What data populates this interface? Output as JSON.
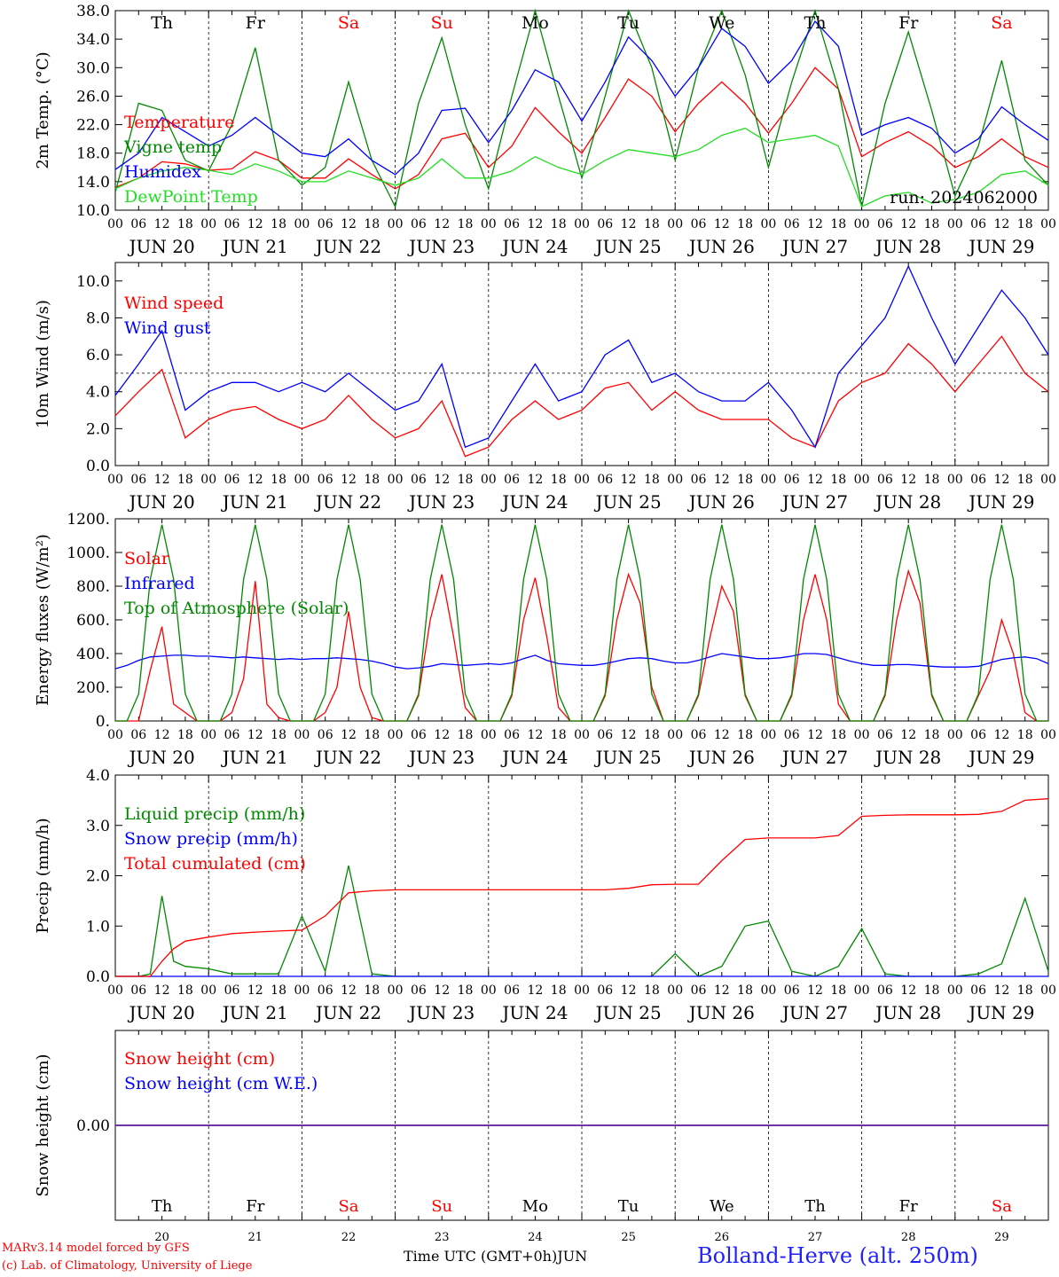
{
  "run_label": "run: 2024062000",
  "days": [
    {
      "day": "20",
      "month": "JUN",
      "weekday": "Th",
      "weekend": false
    },
    {
      "day": "21",
      "month": "JUN",
      "weekday": "Fr",
      "weekend": false
    },
    {
      "day": "22",
      "month": "JUN",
      "weekday": "Sa",
      "weekend": true
    },
    {
      "day": "23",
      "month": "JUN",
      "weekday": "Su",
      "weekend": true
    },
    {
      "day": "24",
      "month": "JUN",
      "weekday": "Mo",
      "weekend": false
    },
    {
      "day": "25",
      "month": "JUN",
      "weekday": "Tu",
      "weekend": false
    },
    {
      "day": "26",
      "month": "JUN",
      "weekday": "We",
      "weekend": false
    },
    {
      "day": "27",
      "month": "JUN",
      "weekday": "Th",
      "weekend": false
    },
    {
      "day": "28",
      "month": "JUN",
      "weekday": "Fr",
      "weekend": false
    },
    {
      "day": "29",
      "month": "JUN",
      "weekday": "Sa",
      "weekend": true
    }
  ],
  "hour_ticks": [
    "00",
    "06",
    "12",
    "18"
  ],
  "footer": {
    "model_line": "MARv3.14 model forced by GFS",
    "credit_line": "(c) Lab. of Climatology, University of Liege",
    "time_axis_label": "Time UTC (GMT+0h)",
    "month_label": "JUN",
    "station": "Bolland-Herve (alt. 250m)"
  },
  "colors": {
    "red": "#ff0000",
    "blue": "#0000ff",
    "green": "#008800",
    "light_green": "#22dd22",
    "purple": "#7030a0",
    "weekend": "#ff0000"
  },
  "chart_data": [
    {
      "id": "temperature",
      "type": "line",
      "ylabel": "2m Temp. (°C)",
      "ylim": [
        10,
        38
      ],
      "yticks": [
        "10.0",
        "14.0",
        "18.0",
        "22.0",
        "26.0",
        "30.0",
        "34.0",
        "38.0"
      ],
      "grid": false,
      "show_weekdays": true,
      "legend_location": "left",
      "x_hours": [
        0,
        6,
        12,
        18,
        24,
        30,
        36,
        42,
        48,
        54,
        60,
        66,
        72,
        78,
        84,
        90,
        96,
        102,
        108,
        114,
        120,
        126,
        132,
        138,
        144,
        150,
        156,
        162,
        168,
        174,
        180,
        186,
        192,
        198,
        204,
        210,
        216,
        222,
        228,
        234,
        240
      ],
      "series": [
        {
          "name": "Temperature",
          "color": "#ff0000",
          "values": [
            13.2,
            14.5,
            16.8,
            16.5,
            15.6,
            15.8,
            18.2,
            17.0,
            14.5,
            14.5,
            17.2,
            15.0,
            13.0,
            15.0,
            20.0,
            20.8,
            16.0,
            19.0,
            24.4,
            21.0,
            18.0,
            23.0,
            28.4,
            26.0,
            21.0,
            25.0,
            28.0,
            25.0,
            20.8,
            25.0,
            30.0,
            27.0,
            17.5,
            19.5,
            21.0,
            19.0,
            16.0,
            17.5,
            20.0,
            17.5,
            16.0
          ]
        },
        {
          "name": "Vigne temp",
          "color": "#008800",
          "values": [
            12.5,
            25.0,
            24.0,
            17.0,
            15.5,
            22.0,
            32.8,
            17.0,
            13.5,
            16.0,
            28.0,
            17.0,
            10.5,
            25.0,
            34.2,
            22.0,
            13.0,
            26.0,
            38.0,
            26.0,
            14.5,
            26.0,
            38.0,
            30.0,
            17.0,
            30.0,
            38.0,
            29.0,
            16.0,
            28.0,
            38.0,
            27.0,
            10.5,
            25.0,
            35.0,
            24.0,
            12.0,
            19.0,
            31.0,
            17.0,
            13.5
          ]
        },
        {
          "name": "Humidex",
          "color": "#0000ff",
          "values": [
            15.7,
            18.0,
            23.0,
            21.0,
            19.0,
            20.5,
            23.0,
            20.5,
            18.0,
            17.5,
            20.0,
            17.0,
            15.0,
            18.0,
            24.0,
            24.3,
            19.5,
            24.0,
            29.7,
            28.0,
            22.5,
            28.0,
            34.3,
            31.0,
            26.0,
            30.0,
            35.5,
            33.0,
            27.8,
            31.0,
            36.5,
            33.0,
            20.5,
            22.0,
            23.0,
            21.5,
            18.0,
            20.0,
            24.5,
            22.0,
            19.8
          ]
        },
        {
          "name": "DewPoint Temp",
          "color": "#22dd22",
          "values": [
            13.0,
            14.5,
            15.5,
            16.0,
            15.6,
            15.0,
            16.5,
            15.5,
            14.0,
            14.0,
            15.5,
            14.5,
            13.5,
            14.5,
            17.2,
            14.5,
            14.5,
            15.5,
            17.5,
            16.0,
            15.0,
            17.0,
            18.5,
            18.0,
            17.5,
            18.5,
            20.5,
            21.5,
            19.5,
            20.0,
            20.5,
            19.0,
            10.5,
            12.0,
            12.5,
            11.0,
            11.5,
            12.5,
            15.0,
            15.5,
            13.5
          ]
        }
      ]
    },
    {
      "id": "wind",
      "type": "line",
      "ylabel": "10m Wind (m/s)",
      "ylim": [
        0,
        11
      ],
      "yticks": [
        "0.0",
        "2.0",
        "4.0",
        "6.0",
        "8.0",
        "10.0"
      ],
      "grid": false,
      "reference_line": 5,
      "legend_location": "left",
      "x_hours": [
        0,
        6,
        12,
        18,
        24,
        30,
        36,
        42,
        48,
        54,
        60,
        66,
        72,
        78,
        84,
        90,
        96,
        102,
        108,
        114,
        120,
        126,
        132,
        138,
        144,
        150,
        156,
        162,
        168,
        174,
        180,
        186,
        192,
        198,
        204,
        210,
        216,
        222,
        228,
        234,
        240
      ],
      "series": [
        {
          "name": "Wind speed",
          "color": "#ff0000",
          "values": [
            2.7,
            4.0,
            5.2,
            1.5,
            2.5,
            3.0,
            3.2,
            2.5,
            2.0,
            2.5,
            3.8,
            2.5,
            1.5,
            2.0,
            3.5,
            0.5,
            1.0,
            2.5,
            3.5,
            2.5,
            3.0,
            4.2,
            4.5,
            3.0,
            4.0,
            3.0,
            2.5,
            2.5,
            2.5,
            1.5,
            1.0,
            3.5,
            4.5,
            5.0,
            6.6,
            5.5,
            4.0,
            5.5,
            7.0,
            5.0,
            4.0
          ]
        },
        {
          "name": "Wind gust",
          "color": "#0000ff",
          "values": [
            3.8,
            5.5,
            7.3,
            3.0,
            4.0,
            4.5,
            4.5,
            4.0,
            4.5,
            4.0,
            5.0,
            4.0,
            3.0,
            3.5,
            5.5,
            1.0,
            1.5,
            3.5,
            5.5,
            3.5,
            4.0,
            6.0,
            6.8,
            4.5,
            5.0,
            4.0,
            3.5,
            3.5,
            4.5,
            3.0,
            1.0,
            5.0,
            6.5,
            8.0,
            10.8,
            8.0,
            5.5,
            7.5,
            9.5,
            8.0,
            6.0
          ]
        }
      ]
    },
    {
      "id": "fluxes",
      "type": "line",
      "ylabel": "Energy fluxes (W/m²)",
      "ylim": [
        0,
        1200
      ],
      "yticks": [
        "0.",
        "200.",
        "400.",
        "600.",
        "800.",
        "1000.",
        "1200."
      ],
      "grid": false,
      "legend_location": "left",
      "x_hours": [
        0,
        3,
        6,
        9,
        12,
        15,
        18,
        21,
        24,
        27,
        30,
        33,
        36,
        39,
        42,
        45,
        48,
        51,
        54,
        57,
        60,
        63,
        66,
        69,
        72,
        75,
        78,
        81,
        84,
        87,
        90,
        93,
        96,
        99,
        102,
        105,
        108,
        111,
        114,
        117,
        120,
        123,
        126,
        129,
        132,
        135,
        138,
        141,
        144,
        147,
        150,
        153,
        156,
        159,
        162,
        165,
        168,
        171,
        174,
        177,
        180,
        183,
        186,
        189,
        192,
        195,
        198,
        201,
        204,
        207,
        210,
        213,
        216,
        219,
        222,
        225,
        228,
        231,
        234,
        237,
        240
      ],
      "series": [
        {
          "name": "Solar",
          "color": "#ff0000",
          "values": [
            0,
            0,
            0,
            300,
            560,
            100,
            50,
            0,
            0,
            0,
            50,
            250,
            830,
            100,
            20,
            0,
            0,
            0,
            50,
            200,
            650,
            200,
            20,
            0,
            0,
            0,
            150,
            600,
            870,
            500,
            80,
            0,
            0,
            0,
            150,
            600,
            850,
            500,
            80,
            0,
            0,
            0,
            150,
            600,
            870,
            700,
            200,
            0,
            0,
            0,
            150,
            500,
            800,
            650,
            150,
            0,
            0,
            0,
            150,
            600,
            870,
            600,
            100,
            0,
            0,
            0,
            150,
            600,
            890,
            700,
            150,
            0,
            0,
            0,
            150,
            300,
            600,
            400,
            50,
            0,
            0
          ]
        },
        {
          "name": "Infrared",
          "color": "#0000ff",
          "values": [
            310,
            330,
            360,
            380,
            385,
            390,
            390,
            385,
            385,
            380,
            375,
            380,
            375,
            370,
            365,
            370,
            365,
            370,
            370,
            375,
            370,
            365,
            355,
            340,
            320,
            310,
            315,
            325,
            340,
            335,
            330,
            335,
            340,
            335,
            345,
            370,
            390,
            360,
            340,
            335,
            330,
            330,
            340,
            355,
            370,
            375,
            370,
            355,
            345,
            345,
            360,
            380,
            400,
            390,
            380,
            370,
            370,
            375,
            385,
            400,
            400,
            395,
            375,
            355,
            340,
            330,
            330,
            335,
            335,
            330,
            325,
            320,
            320,
            320,
            325,
            345,
            365,
            375,
            380,
            370,
            340
          ]
        },
        {
          "name": "Top of Atmosphere (Solar)",
          "color": "#008800",
          "values": [
            0,
            0,
            160,
            840,
            1165,
            840,
            160,
            0,
            0,
            0,
            160,
            840,
            1165,
            840,
            160,
            0,
            0,
            0,
            160,
            840,
            1165,
            840,
            160,
            0,
            0,
            0,
            160,
            840,
            1165,
            840,
            160,
            0,
            0,
            0,
            160,
            840,
            1165,
            840,
            160,
            0,
            0,
            0,
            160,
            840,
            1165,
            840,
            160,
            0,
            0,
            0,
            160,
            840,
            1165,
            840,
            160,
            0,
            0,
            0,
            160,
            840,
            1165,
            840,
            160,
            0,
            0,
            0,
            160,
            840,
            1165,
            840,
            160,
            0,
            0,
            0,
            160,
            840,
            1165,
            840,
            160,
            0,
            0
          ]
        }
      ]
    },
    {
      "id": "precip",
      "type": "line",
      "ylabel": "Precip (mm/h)",
      "ylim": [
        0,
        4
      ],
      "yticks": [
        "0.0",
        "1.0",
        "2.0",
        "3.0",
        "4.0"
      ],
      "grid": false,
      "legend_location": "left",
      "x_hours": [
        0,
        6,
        9,
        12,
        15,
        18,
        24,
        30,
        36,
        42,
        48,
        54,
        60,
        66,
        72,
        78,
        84,
        90,
        96,
        102,
        108,
        114,
        120,
        126,
        132,
        138,
        144,
        150,
        156,
        162,
        168,
        174,
        180,
        186,
        192,
        198,
        204,
        210,
        216,
        222,
        228,
        234,
        240
      ],
      "series": [
        {
          "name": "Liquid precip (mm/h)",
          "color": "#008800",
          "values": [
            0,
            0,
            0.05,
            1.6,
            0.3,
            0.2,
            0.15,
            0.05,
            0.05,
            0.05,
            1.2,
            0.1,
            2.2,
            0.05,
            0,
            0,
            0,
            0,
            0,
            0,
            0,
            0,
            0,
            0,
            0,
            0,
            0.45,
            0,
            0.2,
            1.0,
            1.1,
            0.1,
            0,
            0.2,
            0.95,
            0.05,
            0,
            0,
            0,
            0.05,
            0.25,
            1.55,
            0.1
          ]
        },
        {
          "name": "Snow precip (mm/h)",
          "color": "#0000ff",
          "values": [
            0,
            0,
            0,
            0,
            0,
            0,
            0,
            0,
            0,
            0,
            0,
            0,
            0,
            0,
            0,
            0,
            0,
            0,
            0,
            0,
            0,
            0,
            0,
            0,
            0,
            0,
            0,
            0,
            0,
            0,
            0,
            0,
            0,
            0,
            0,
            0,
            0,
            0,
            0,
            0,
            0,
            0,
            0
          ]
        },
        {
          "name": "Total cumulated (cm)",
          "color": "#ff0000",
          "values": [
            0,
            0,
            0,
            0.3,
            0.55,
            0.7,
            0.78,
            0.85,
            0.88,
            0.9,
            0.92,
            1.2,
            1.66,
            1.7,
            1.72,
            1.72,
            1.72,
            1.72,
            1.72,
            1.72,
            1.72,
            1.72,
            1.72,
            1.72,
            1.75,
            1.82,
            1.83,
            1.83,
            2.3,
            2.72,
            2.75,
            2.75,
            2.75,
            2.8,
            3.18,
            3.2,
            3.21,
            3.21,
            3.21,
            3.22,
            3.28,
            3.5,
            3.53
          ]
        }
      ]
    },
    {
      "id": "snow",
      "type": "line",
      "ylabel": "Snow height (cm)",
      "yticks": [
        "0.00"
      ],
      "grid": false,
      "show_weekdays": true,
      "show_day_numbers": true,
      "legend_location": "left",
      "x_hours": [
        0,
        240
      ],
      "series": [
        {
          "name": "Snow height (cm)",
          "color": "#ff0000",
          "values": [
            0,
            0
          ]
        },
        {
          "name": "Snow height (cm W.E.)",
          "color": "#0000ff",
          "values": [
            0,
            0
          ]
        }
      ]
    }
  ]
}
